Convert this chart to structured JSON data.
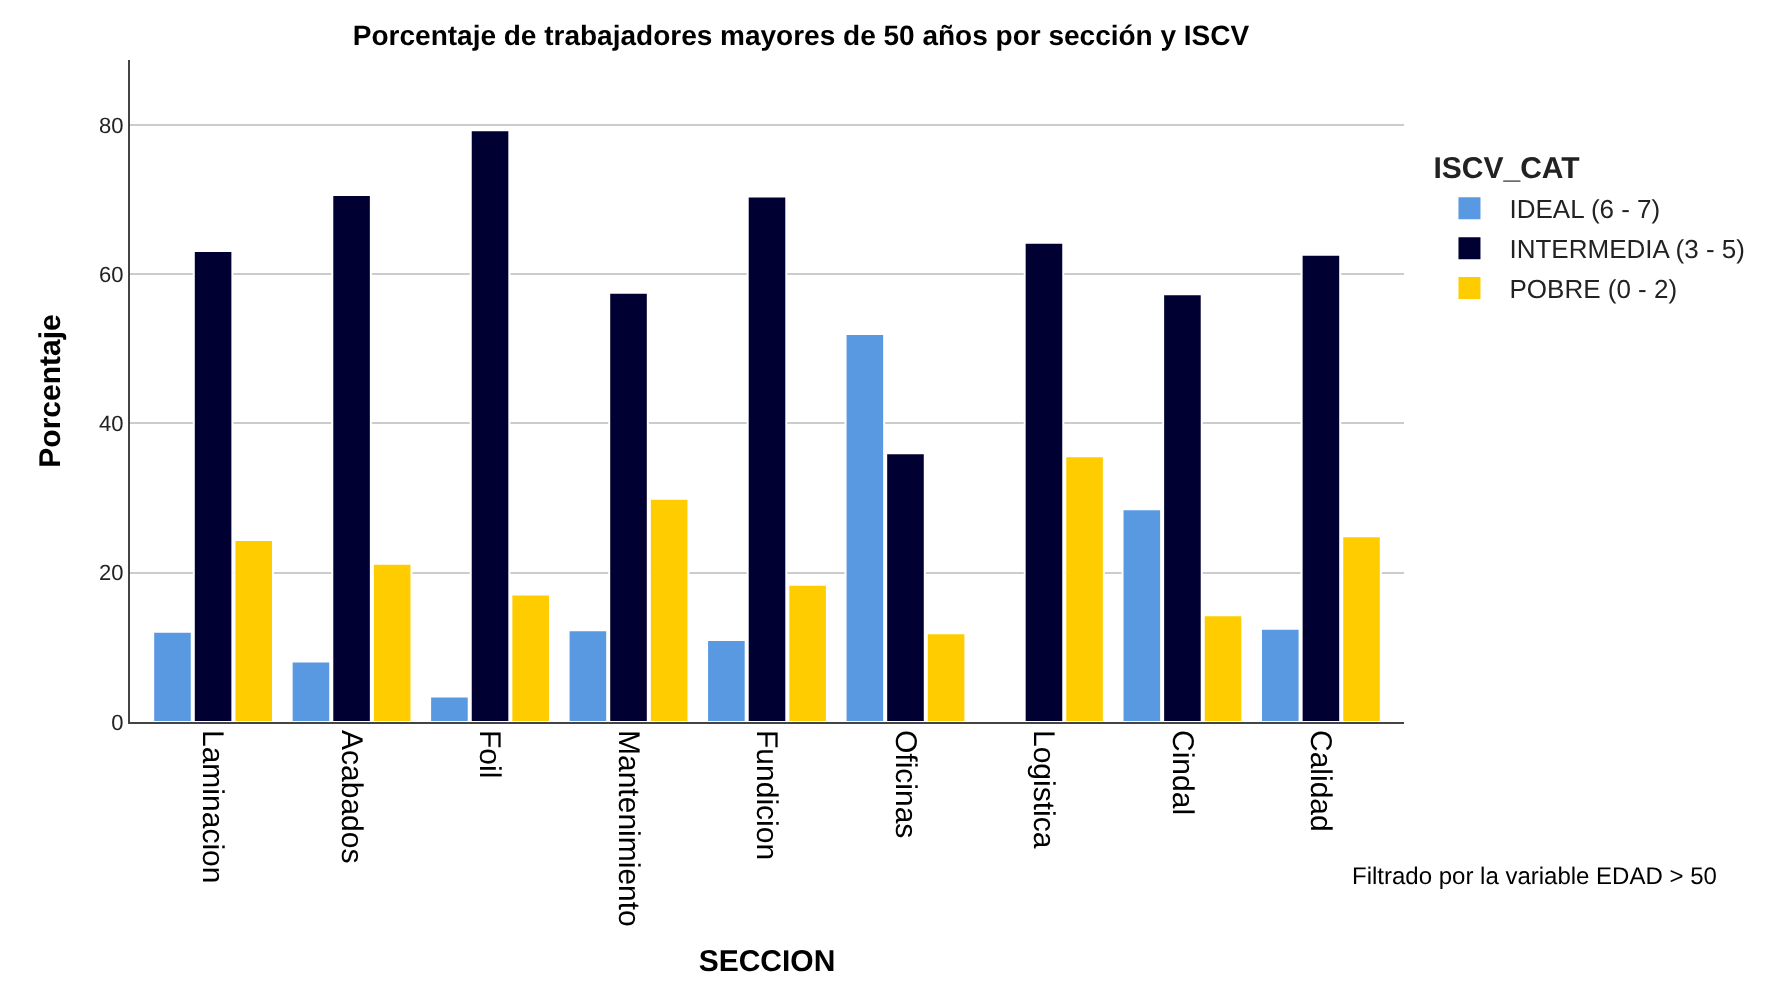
{
  "chart_data": {
    "type": "bar",
    "title": "Porcentaje de trabajadores mayores de 50 años por sección y ISCV",
    "xlabel": "SECCION",
    "ylabel": "Porcentaje",
    "legend_title": "ISCV_CAT",
    "categories": [
      "Laminacion",
      "Acabados",
      "Foil",
      "Mantenimiento",
      "Fundicion",
      "Oficinas",
      "Logistica",
      "Cindal",
      "Calidad"
    ],
    "series": [
      {
        "name": "IDEAL (6 - 7)",
        "color": "#5899e2",
        "values": [
          12.1,
          8.1,
          3.4,
          12.3,
          11.0,
          52.0,
          null,
          28.5,
          12.5
        ]
      },
      {
        "name": "INTERMEDIA (3 - 5)",
        "color": "#000033",
        "values": [
          63.1,
          70.6,
          79.3,
          57.5,
          70.4,
          36.0,
          64.2,
          57.3,
          62.6
        ]
      },
      {
        "name": "POBRE (0 - 2)",
        "color": "#ffcc00",
        "values": [
          24.4,
          21.2,
          17.1,
          29.9,
          18.4,
          11.9,
          35.6,
          14.3,
          24.9
        ]
      }
    ],
    "ylim": [
      0,
      88.7
    ],
    "yticks": [
      0,
      20,
      40,
      60,
      80
    ],
    "grid": "y",
    "legend": "right",
    "annotations": [
      "Filtrado por la variable EDAD > 50"
    ]
  }
}
